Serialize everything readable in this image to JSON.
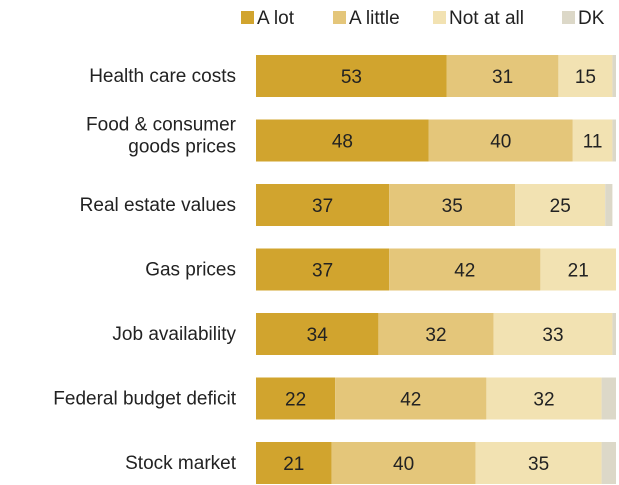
{
  "chart_data": {
    "type": "bar",
    "orientation": "horizontal",
    "stacked": true,
    "xlim": [
      0,
      100
    ],
    "grid": false,
    "legend_position": "top-right",
    "categories": [
      "Health care costs",
      "Food & consumer goods prices",
      "Real estate values",
      "Gas prices",
      "Job availability",
      "Federal budget deficit",
      "Stock market"
    ],
    "category_lines": [
      [
        "Health care costs"
      ],
      [
        "Food & consumer",
        "goods prices"
      ],
      [
        "Real estate values"
      ],
      [
        "Gas prices"
      ],
      [
        "Job availability"
      ],
      [
        "Federal budget deficit"
      ],
      [
        "Stock market"
      ]
    ],
    "series": [
      {
        "name": "A lot",
        "color": "#d1a42e",
        "values": [
          53,
          48,
          37,
          37,
          34,
          22,
          21
        ],
        "labels": [
          "53",
          "48",
          "37",
          "37",
          "34",
          "22",
          "21"
        ]
      },
      {
        "name": "A little",
        "color": "#e4c67a",
        "values": [
          31,
          40,
          35,
          42,
          32,
          42,
          40
        ],
        "labels": [
          "31",
          "40",
          "35",
          "42",
          "32",
          "42",
          "40"
        ]
      },
      {
        "name": "Not at all",
        "color": "#f2e2b2",
        "values": [
          15,
          11,
          25,
          21,
          33,
          32,
          35
        ],
        "labels": [
          "15",
          "11",
          "25",
          "21",
          "33",
          "32",
          "35"
        ]
      },
      {
        "name": "DK",
        "color": "#dcd8c8",
        "values": [
          1,
          1,
          2,
          0,
          1,
          4,
          4
        ],
        "labels": [
          "",
          "",
          "",
          "",
          "",
          "",
          ""
        ]
      }
    ]
  }
}
